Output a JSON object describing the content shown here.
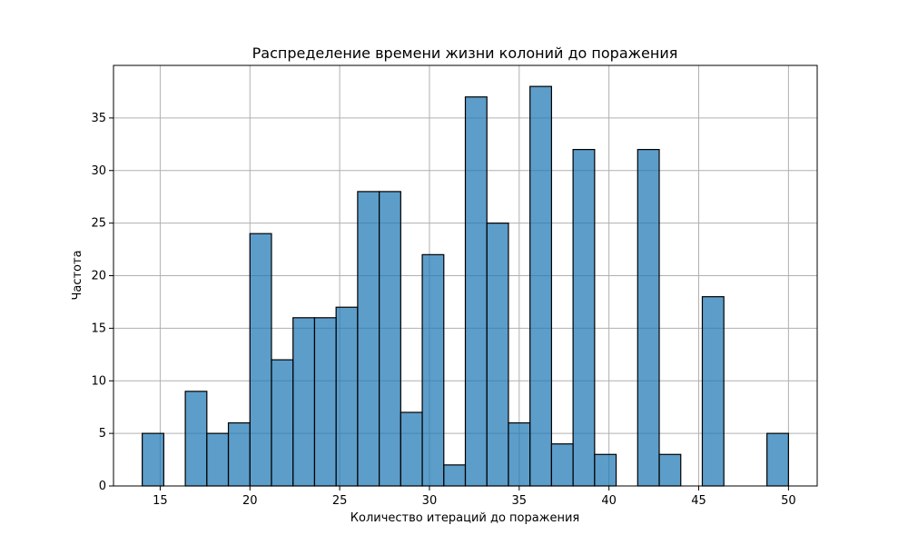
{
  "chart_data": {
    "type": "bar",
    "title": "Распределение времени жизни колоний до поражения",
    "xlabel": "Количество итераций до поражения",
    "ylabel": "Частота",
    "xlim": [
      12.4,
      51.6
    ],
    "ylim": [
      0,
      40
    ],
    "xticks": [
      15,
      20,
      25,
      30,
      35,
      40,
      45,
      50
    ],
    "yticks": [
      0,
      5,
      10,
      15,
      20,
      25,
      30,
      35
    ],
    "bin_edges": [
      14.0,
      15.2,
      16.4,
      17.6,
      18.8,
      20.0,
      21.2,
      22.4,
      23.6,
      24.8,
      26.0,
      27.2,
      28.4,
      29.6,
      30.8,
      32.0,
      33.2,
      34.4,
      35.6,
      36.8,
      38.0,
      39.2,
      40.4,
      41.6,
      42.8,
      44.0,
      45.2,
      46.4,
      47.6,
      48.8,
      50.0
    ],
    "values": [
      5,
      0,
      9,
      5,
      6,
      24,
      12,
      16,
      16,
      17,
      28,
      28,
      7,
      22,
      2,
      37,
      25,
      6,
      38,
      4,
      32,
      3,
      0,
      32,
      3,
      0,
      18,
      0,
      0,
      5
    ],
    "grid": true,
    "bar_color": "#1f77b4",
    "bar_edge_color": "#000000",
    "grid_color": "#b0b0b0"
  }
}
